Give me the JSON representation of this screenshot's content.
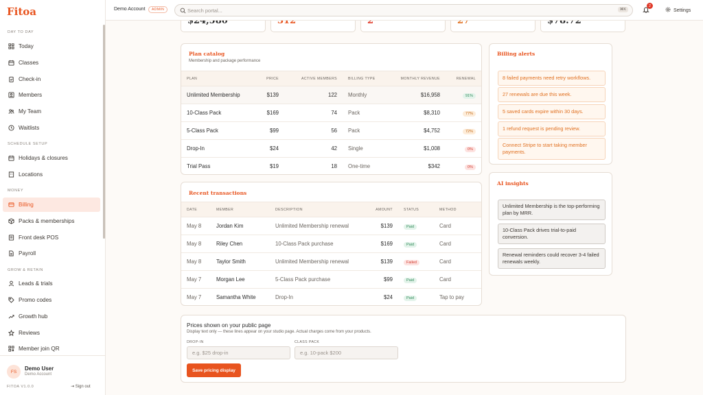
{
  "app": {
    "logo": "Fitoa"
  },
  "topbar": {
    "account": "Demo Account",
    "admin_badge": "ADMIN",
    "search_placeholder": "Search portal...",
    "shortcut": "⌘K",
    "notifications_count": "2",
    "settings_label": "Settings"
  },
  "sidebar": {
    "sections": {
      "day_to_day": "DAY TO DAY",
      "schedule_setup": "SCHEDULE SETUP",
      "money": "MONEY",
      "grow_retain": "GROW & RETAIN"
    },
    "items": {
      "today": "Today",
      "classes": "Classes",
      "checkin": "Check-in",
      "members": "Members",
      "my_team": "My Team",
      "waitlists": "Waitlists",
      "holidays": "Holidays & closures",
      "locations": "Locations",
      "billing": "Billing",
      "packs": "Packs & memberships",
      "pos": "Front desk POS",
      "payroll": "Payroll",
      "leads": "Leads & trials",
      "promo": "Promo codes",
      "growth": "Growth hub",
      "reviews": "Reviews",
      "qr": "Member join QR"
    },
    "user": {
      "initials": "FS",
      "name": "Demo User",
      "account": "Demo Account"
    },
    "version": "FITOA V1.0.0",
    "sign_out": "Sign out"
  },
  "stats": [
    "$24,580",
    "312",
    "2",
    "27",
    "$78.72"
  ],
  "plan_catalog": {
    "title": "Plan catalog",
    "subtitle": "Membership and package performance",
    "headers": {
      "plan": "PLAN",
      "price": "PRICE",
      "active": "ACTIVE MEMBERS",
      "billing": "BILLING TYPE",
      "revenue": "MONTHLY REVENUE",
      "renewal": "RENEWAL"
    },
    "rows": [
      {
        "plan": "Unlimited Membership",
        "price": "$139",
        "active": "122",
        "billing": "Monthly",
        "revenue": "$16,958",
        "renewal": "91%",
        "status": "green"
      },
      {
        "plan": "10-Class Pack",
        "price": "$169",
        "active": "74",
        "billing": "Pack",
        "revenue": "$8,310",
        "renewal": "77%",
        "status": "amber"
      },
      {
        "plan": "5-Class Pack",
        "price": "$99",
        "active": "56",
        "billing": "Pack",
        "revenue": "$4,752",
        "renewal": "72%",
        "status": "amber"
      },
      {
        "plan": "Drop-In",
        "price": "$24",
        "active": "42",
        "billing": "Single",
        "revenue": "$1,008",
        "renewal": "0%",
        "status": "red"
      },
      {
        "plan": "Trial Pass",
        "price": "$19",
        "active": "18",
        "billing": "One-time",
        "revenue": "$342",
        "renewal": "0%",
        "status": "red"
      }
    ]
  },
  "transactions": {
    "title": "Recent transactions",
    "headers": {
      "date": "DATE",
      "member": "MEMBER",
      "description": "DESCRIPTION",
      "amount": "AMOUNT",
      "status": "STATUS",
      "method": "METHOD"
    },
    "rows": [
      {
        "date": "May 8",
        "member": "Jordan Kim",
        "description": "Unlimited Membership renewal",
        "amount": "$139",
        "status": "Paid",
        "kind": "green",
        "method": "Card"
      },
      {
        "date": "May 8",
        "member": "Riley Chen",
        "description": "10-Class Pack purchase",
        "amount": "$169",
        "status": "Paid",
        "kind": "green",
        "method": "Card"
      },
      {
        "date": "May 8",
        "member": "Taylor Smith",
        "description": "Unlimited Membership renewal",
        "amount": "$139",
        "status": "Failed",
        "kind": "red",
        "method": "Card"
      },
      {
        "date": "May 7",
        "member": "Morgan Lee",
        "description": "5-Class Pack purchase",
        "amount": "$99",
        "status": "Paid",
        "kind": "green",
        "method": "Card"
      },
      {
        "date": "May 7",
        "member": "Samantha White",
        "description": "Drop-In",
        "amount": "$24",
        "status": "Paid",
        "kind": "green",
        "method": "Tap to pay"
      }
    ]
  },
  "billing_alerts": {
    "title": "Billing alerts",
    "items": [
      "8 failed payments need retry workflows.",
      "27 renewals are due this week.",
      "5 saved cards expire within 30 days.",
      "1 refund request is pending review.",
      "Connect Stripe to start taking member payments."
    ]
  },
  "ai_insights": {
    "title": "AI insights",
    "items": [
      "Unlimited Membership is the top-performing plan by MRR.",
      "10-Class Pack drives trial-to-paid conversion.",
      "Renewal reminders could recover 3-4 failed renewals weekly."
    ]
  },
  "public_prices": {
    "title": "Prices shown on your public page",
    "subtitle": "Display text only — these lines appear on your studio page. Actual charges come from your products.",
    "dropin_label": "DROP-IN",
    "dropin_placeholder": "e.g. $25 drop-in",
    "classpack_label": "CLASS PACK",
    "classpack_placeholder": "e.g. 10-pack $200",
    "save_label": "Save pricing display"
  },
  "colors": {
    "accent": "#e8541f",
    "paid": "#2f8a58",
    "failed": "#d23d30",
    "warning": "#c36a17"
  }
}
